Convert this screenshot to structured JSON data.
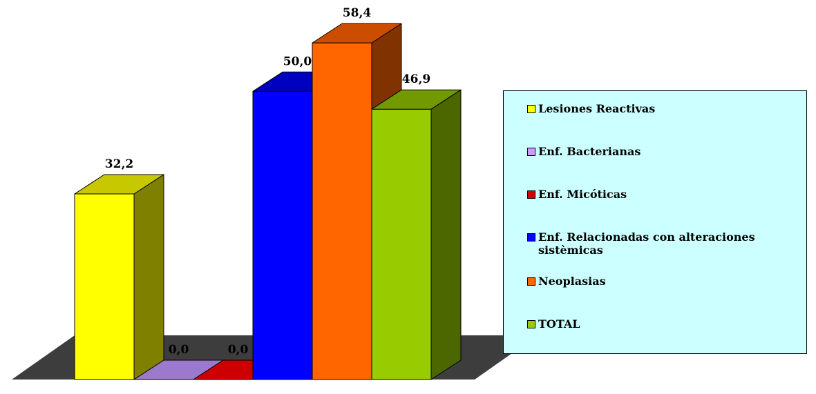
{
  "chart_data": {
    "type": "bar",
    "title": "",
    "xlabel": "",
    "ylabel": "",
    "ylim": [
      0,
      62
    ],
    "grid": false,
    "legend_position": "right",
    "categories": [
      "Lesiones Reactivas",
      "Enf. Bacterianas",
      "Enf. Micóticas",
      "Enf. Relacionadas con alteraciones sistèmicas",
      "Neoplasias",
      "TOTAL"
    ],
    "values": [
      32.2,
      0.0,
      0.0,
      50.0,
      58.4,
      46.9
    ],
    "value_labels": [
      "32,2",
      "0,0",
      "0,0",
      "50,0",
      "58,4",
      "46,9"
    ],
    "series": [
      {
        "name": "Lesiones Reactivas",
        "value": 32.2,
        "label": "32,2",
        "color": "#ffff00",
        "top_color": "#c8c800",
        "side_color": "#808000"
      },
      {
        "name": "Enf. Bacterianas",
        "value": 0.0,
        "label": "0,0",
        "color": "#9b79cc",
        "top_color": "#9b79cc",
        "side_color": "#6c4f99"
      },
      {
        "name": "Enf. Micóticas",
        "value": 0.0,
        "label": "0,0",
        "color": "#cc0000",
        "top_color": "#cc0000",
        "side_color": "#800000"
      },
      {
        "name": "Enf. Relacionadas con alteraciones sistèmicas",
        "value": 50.0,
        "label": "50,0",
        "color": "#0000ff",
        "top_color": "#0000c0",
        "side_color": "#000080"
      },
      {
        "name": "Neoplasias",
        "value": 58.4,
        "label": "58,4",
        "color": "#ff6600",
        "top_color": "#cc4c00",
        "side_color": "#803300"
      },
      {
        "name": "TOTAL",
        "value": 46.9,
        "label": "46,9",
        "color": "#99cc00",
        "top_color": "#739900",
        "side_color": "#4c6600"
      }
    ],
    "floor_color": "#3d3d3d"
  },
  "legend": {
    "items": [
      {
        "label": "Lesiones Reactivas",
        "color": "#ffff00"
      },
      {
        "label": "Enf. Bacterianas",
        "color": "#cc99ff"
      },
      {
        "label": "Enf. Micóticas",
        "color": "#cc0000"
      },
      {
        "label": "Enf. Relacionadas con alteraciones sistèmicas",
        "color": "#0000ff"
      },
      {
        "label": "Neoplasias",
        "color": "#ff6600"
      },
      {
        "label": "TOTAL",
        "color": "#99cc00"
      }
    ]
  }
}
